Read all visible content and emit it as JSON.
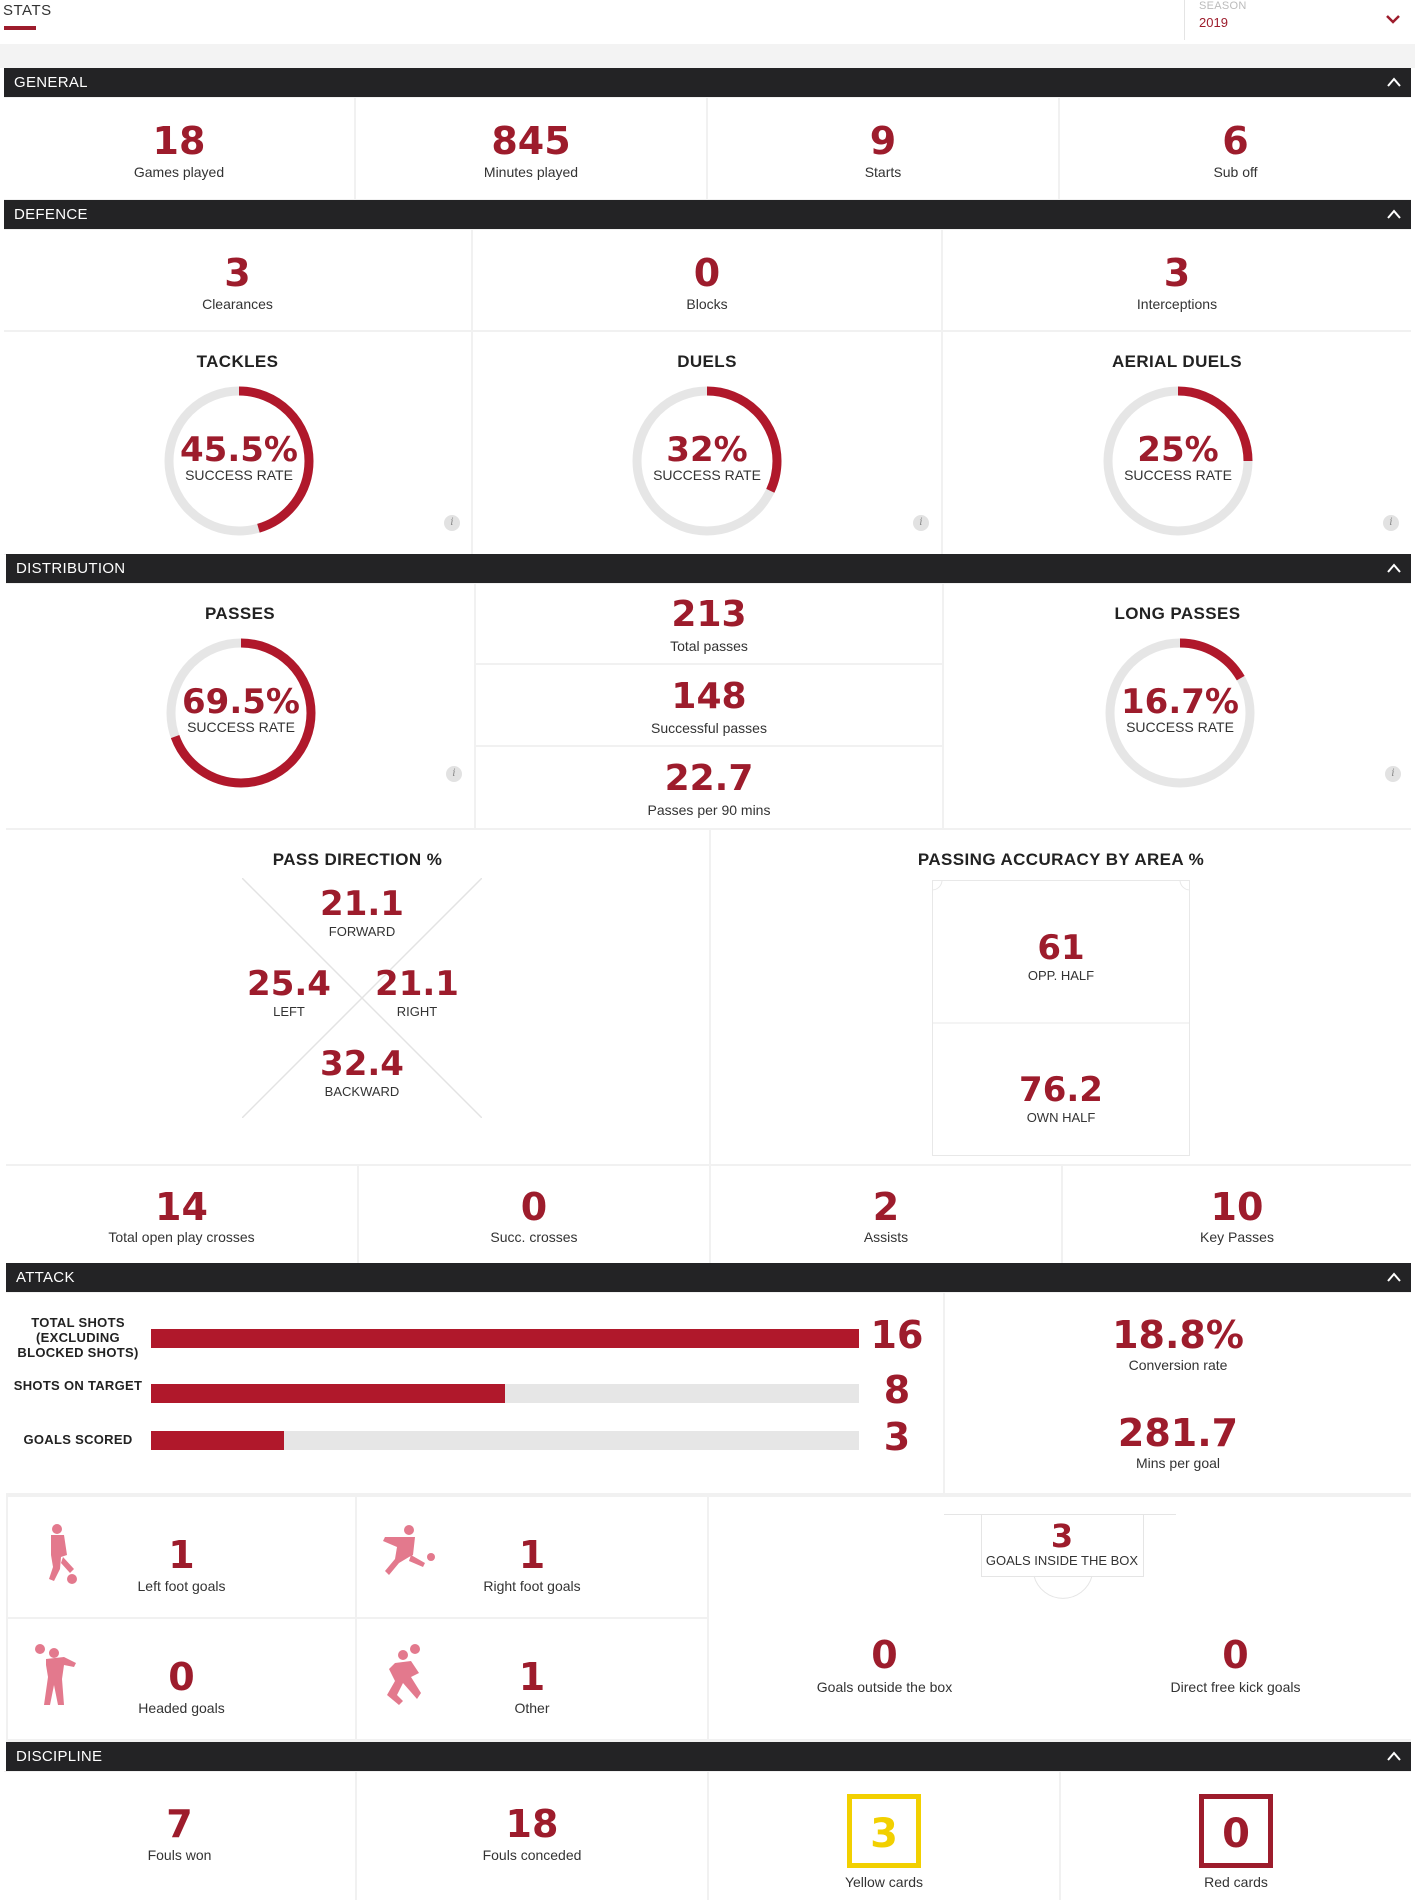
{
  "header": {
    "tab": "STATS",
    "season_label": "SEASON",
    "season_value": "2019"
  },
  "sections": {
    "general": "GENERAL",
    "defence": "DEFENCE",
    "distribution": "DISTRIBUTION",
    "attack": "ATTACK",
    "discipline": "DISCIPLINE"
  },
  "general": [
    {
      "value": "18",
      "label": "Games played"
    },
    {
      "value": "845",
      "label": "Minutes played"
    },
    {
      "value": "9",
      "label": "Starts"
    },
    {
      "value": "6",
      "label": "Sub off"
    }
  ],
  "defence": {
    "counts": [
      {
        "value": "3",
        "label": "Clearances"
      },
      {
        "value": "0",
        "label": "Blocks"
      },
      {
        "value": "3",
        "label": "Interceptions"
      }
    ],
    "donuts": [
      {
        "title": "TACKLES",
        "value": "45.5%",
        "sub": "SUCCESS RATE",
        "pct": 45.5
      },
      {
        "title": "DUELS",
        "value": "32%",
        "sub": "SUCCESS RATE",
        "pct": 32
      },
      {
        "title": "AERIAL DUELS",
        "value": "25%",
        "sub": "SUCCESS RATE",
        "pct": 25
      }
    ]
  },
  "distribution": {
    "passes": {
      "title": "PASSES",
      "value": "69.5%",
      "sub": "SUCCESS RATE",
      "pct": 69.5
    },
    "long_passes": {
      "title": "LONG PASSES",
      "value": "16.7%",
      "sub": "SUCCESS RATE",
      "pct": 16.7
    },
    "middle": [
      {
        "value": "213",
        "label": "Total passes"
      },
      {
        "value": "148",
        "label": "Successful passes"
      },
      {
        "value": "22.7",
        "label": "Passes per 90 mins"
      }
    ],
    "pass_direction": {
      "title": "PASS DIRECTION %",
      "forward": {
        "value": "21.1",
        "label": "FORWARD"
      },
      "left": {
        "value": "25.4",
        "label": "LEFT"
      },
      "right": {
        "value": "21.1",
        "label": "RIGHT"
      },
      "backward": {
        "value": "32.4",
        "label": "BACKWARD"
      }
    },
    "accuracy_by_area": {
      "title": "PASSING ACCURACY BY AREA %",
      "opp_half": {
        "value": "61",
        "label": "OPP. HALF"
      },
      "own_half": {
        "value": "76.2",
        "label": "OWN HALF"
      }
    },
    "crosses": [
      {
        "value": "14",
        "label": "Total open play crosses"
      },
      {
        "value": "0",
        "label": "Succ. crosses"
      },
      {
        "value": "2",
        "label": "Assists"
      },
      {
        "value": "10",
        "label": "Key Passes"
      }
    ]
  },
  "attack": {
    "bars": [
      {
        "label": "TOTAL SHOTS (EXCLUDING BLOCKED SHOTS)",
        "value": 16,
        "display": "16"
      },
      {
        "label": "SHOTS ON TARGET",
        "value": 8,
        "display": "8"
      },
      {
        "label": "GOALS SCORED",
        "value": 3,
        "display": "3"
      }
    ],
    "bar_max": 16,
    "conversion": {
      "value": "18.8%",
      "label": "Conversion rate"
    },
    "mins_per_goal": {
      "value": "281.7",
      "label": "Mins per goal"
    },
    "goal_types": [
      {
        "value": "1",
        "label": "Left foot goals",
        "icon": "left-foot-icon"
      },
      {
        "value": "1",
        "label": "Right foot goals",
        "icon": "right-foot-icon"
      },
      {
        "value": "0",
        "label": "Headed goals",
        "icon": "header-icon"
      },
      {
        "value": "1",
        "label": "Other",
        "icon": "other-goal-icon"
      }
    ],
    "inside_box": {
      "value": "3",
      "label": "GOALS INSIDE THE BOX"
    },
    "outside_box": {
      "value": "0",
      "label": "Goals outside the box"
    },
    "free_kick": {
      "value": "0",
      "label": "Direct free kick goals"
    }
  },
  "discipline": [
    {
      "value": "7",
      "label": "Fouls won"
    },
    {
      "value": "18",
      "label": "Fouls conceded"
    },
    {
      "value": "3",
      "label": "Yellow cards",
      "color": "#f2d000"
    },
    {
      "value": "0",
      "label": "Red cards",
      "color": "#9d1c2c"
    }
  ],
  "colors": {
    "accent": "#9d1c2c",
    "header_bg": "#232325",
    "track": "#e6e6e6"
  }
}
